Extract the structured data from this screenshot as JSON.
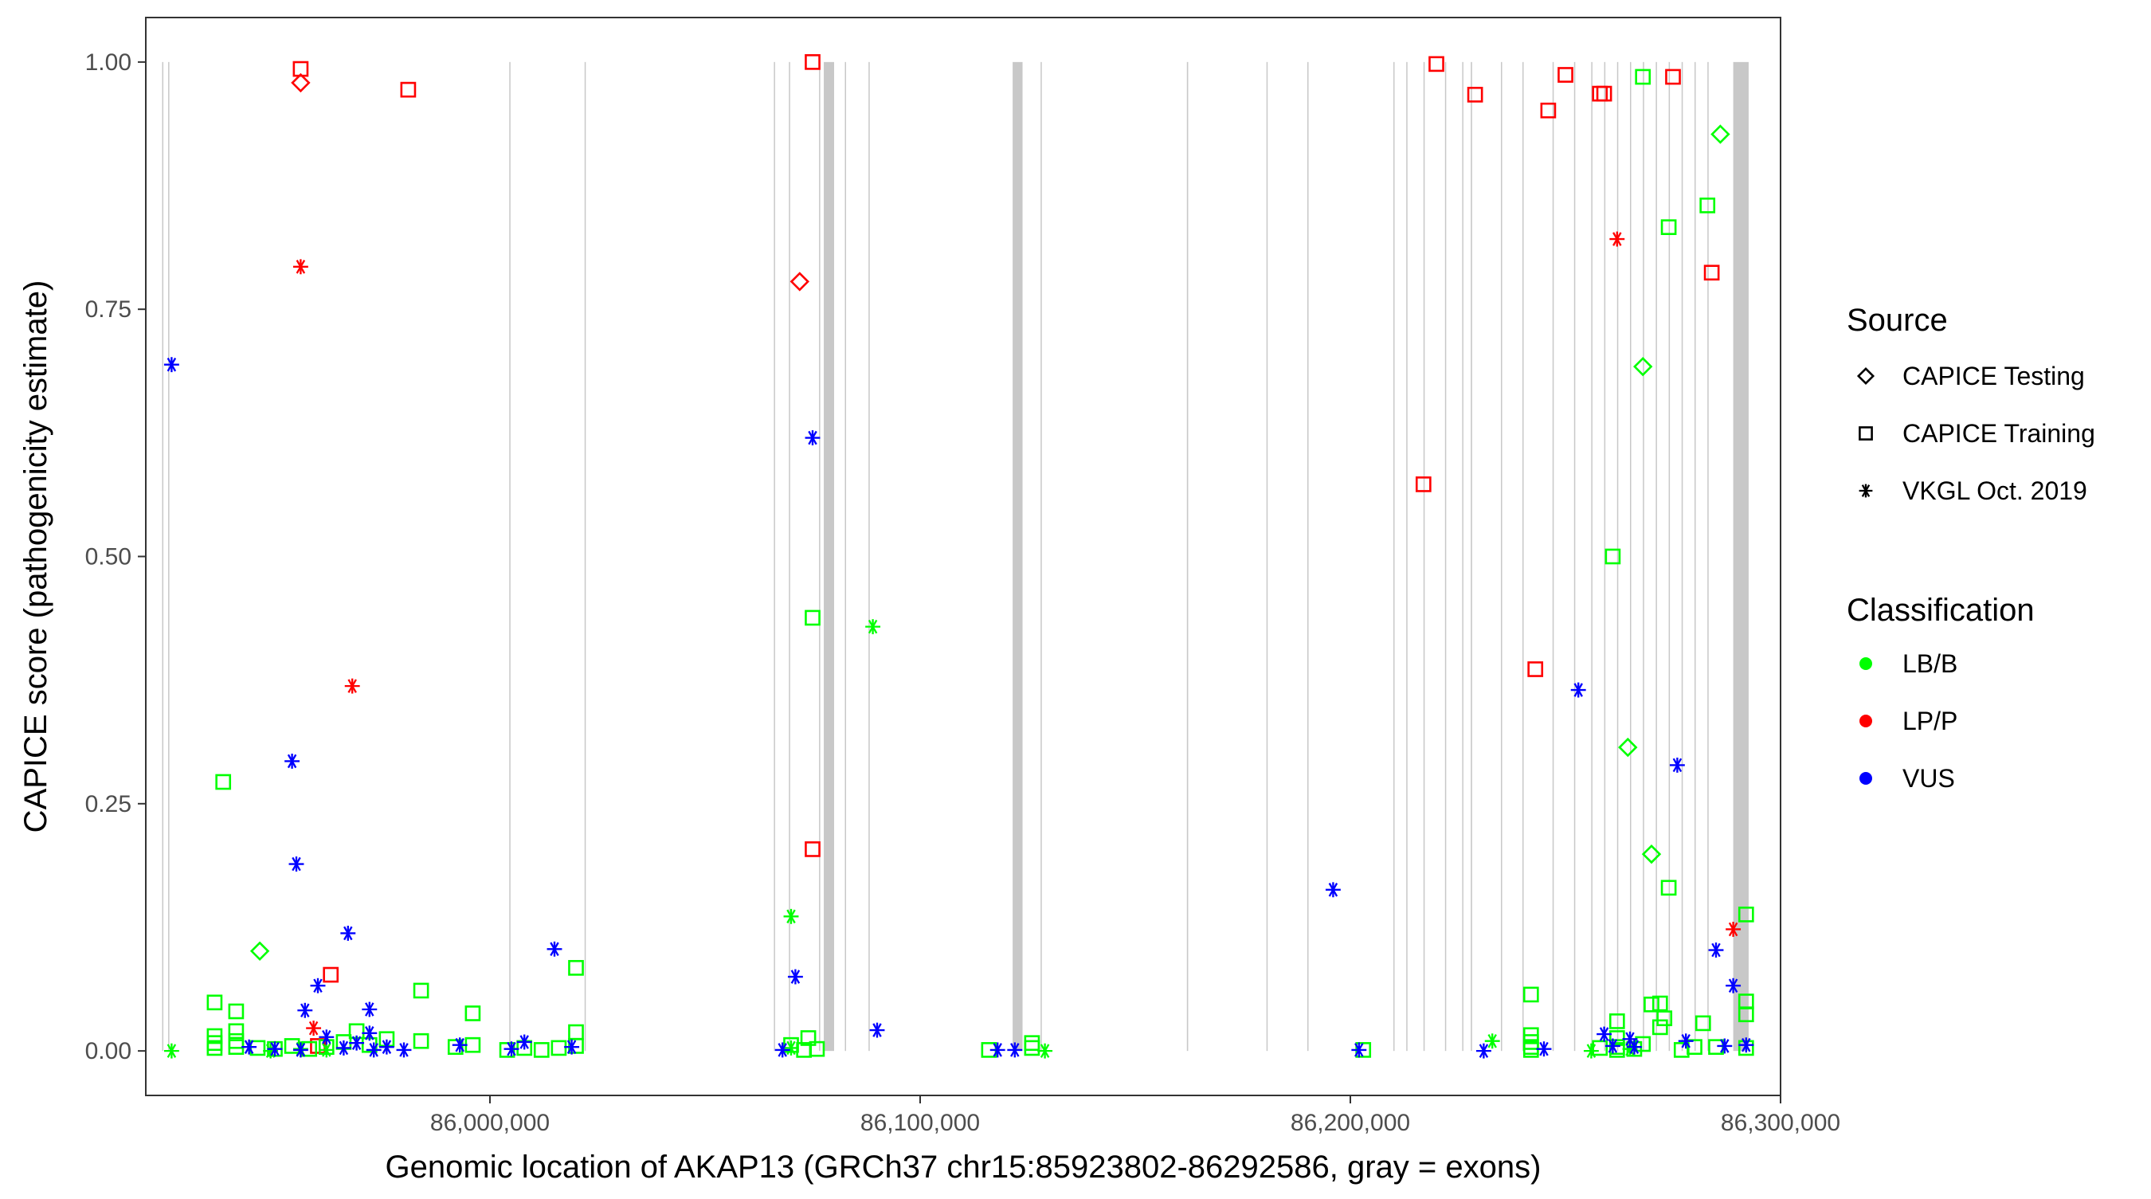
{
  "chart_data": {
    "type": "scatter",
    "title": "",
    "xlabel": "Genomic location of AKAP13 (GRCh37 chr15:85923802-86292586, gray = exons)",
    "ylabel": "CAPICE score (pathogenicity estimate)",
    "xlim": [
      85920000,
      86300000
    ],
    "ylim": [
      -0.045,
      1.045
    ],
    "x_ticks": [
      {
        "value": 86000000,
        "label": "86,000,000"
      },
      {
        "value": 86100000,
        "label": "86,100,000"
      },
      {
        "value": 86200000,
        "label": "86,200,000"
      },
      {
        "value": 86300000,
        "label": "86,300,000"
      }
    ],
    "y_ticks": [
      {
        "value": 0.0,
        "label": "0.00"
      },
      {
        "value": 0.25,
        "label": "0.25"
      },
      {
        "value": 0.5,
        "label": "0.50"
      },
      {
        "value": 0.75,
        "label": "0.75"
      },
      {
        "value": 1.0,
        "label": "1.00"
      }
    ],
    "grid": false,
    "exons": [
      [
        85923802,
        85923950
      ],
      [
        85925200,
        85925350
      ],
      [
        86004500,
        86004700
      ],
      [
        86022000,
        86022200
      ],
      [
        86066000,
        86066200
      ],
      [
        86069500,
        86069700
      ],
      [
        86076500,
        86076700
      ],
      [
        86077600,
        86080000
      ],
      [
        86082500,
        86082700
      ],
      [
        86088000,
        86088200
      ],
      [
        86121500,
        86123800
      ],
      [
        86128000,
        86128200
      ],
      [
        86162000,
        86162300
      ],
      [
        86180500,
        86180700
      ],
      [
        86190000,
        86190200
      ],
      [
        86210000,
        86210200
      ],
      [
        86213000,
        86213200
      ],
      [
        86217000,
        86217200
      ],
      [
        86222000,
        86222200
      ],
      [
        86226000,
        86226200
      ],
      [
        86228000,
        86228300
      ],
      [
        86235000,
        86235200
      ],
      [
        86240000,
        86240200
      ],
      [
        86247000,
        86247200
      ],
      [
        86252000,
        86252200
      ],
      [
        86256000,
        86256200
      ],
      [
        86259000,
        86259200
      ],
      [
        86262000,
        86262200
      ],
      [
        86265000,
        86265200
      ],
      [
        86268000,
        86268200
      ],
      [
        86271000,
        86271200
      ],
      [
        86274000,
        86274200
      ],
      [
        86277000,
        86277200
      ],
      [
        86280000,
        86280200
      ],
      [
        86283000,
        86283200
      ],
      [
        86289000,
        86292586
      ]
    ],
    "colors": {
      "LB/B": "#00ff00",
      "LP/P": "#ff0000",
      "VUS": "#0000ff",
      "exon": "#bebebe"
    },
    "series": [
      {
        "source": "CAPICE Testing",
        "classification": "LB/B",
        "points": [
          [
            85946500,
            0.101
          ],
          [
            86264500,
            0.307
          ],
          [
            86268000,
            0.692
          ],
          [
            86270000,
            0.199
          ],
          [
            86286000,
            0.927
          ]
        ]
      },
      {
        "source": "CAPICE Testing",
        "classification": "LP/P",
        "points": [
          [
            85956000,
            0.979
          ],
          [
            86072000,
            0.778
          ]
        ]
      },
      {
        "source": "CAPICE Training",
        "classification": "LP/P",
        "points": [
          [
            85956000,
            0.993
          ],
          [
            85981000,
            0.972
          ],
          [
            85963000,
            0.077
          ],
          [
            85960000,
            0.005
          ],
          [
            86075000,
            1.0
          ],
          [
            86075000,
            0.204
          ],
          [
            86220000,
            0.998
          ],
          [
            86229000,
            0.967
          ],
          [
            86217000,
            0.573
          ],
          [
            86246000,
            0.951
          ],
          [
            86250000,
            0.987
          ],
          [
            86258000,
            0.968
          ],
          [
            86259000,
            0.968
          ],
          [
            86243000,
            0.386
          ],
          [
            86275000,
            0.985
          ],
          [
            86284000,
            0.787
          ]
        ]
      },
      {
        "source": "CAPICE Training",
        "classification": "LB/B",
        "points": [
          [
            85938000,
            0.272
          ],
          [
            85936000,
            0.049
          ],
          [
            85941000,
            0.04
          ],
          [
            85936000,
            0.015
          ],
          [
            85936000,
            0.008
          ],
          [
            85936000,
            0.003
          ],
          [
            85941000,
            0.02
          ],
          [
            85941000,
            0.01
          ],
          [
            85941000,
            0.004
          ],
          [
            85946000,
            0.003
          ],
          [
            85950000,
            0.002
          ],
          [
            85954000,
            0.005
          ],
          [
            85958000,
            0.002
          ],
          [
            85962000,
            0.004
          ],
          [
            85966000,
            0.009
          ],
          [
            85969000,
            0.02
          ],
          [
            85972000,
            0.006
          ],
          [
            85976000,
            0.012
          ],
          [
            85984000,
            0.061
          ],
          [
            85984000,
            0.01
          ],
          [
            85992000,
            0.004
          ],
          [
            85996000,
            0.038
          ],
          [
            85996000,
            0.006
          ],
          [
            86004000,
            0.001
          ],
          [
            86008000,
            0.003
          ],
          [
            86012000,
            0.001
          ],
          [
            86016000,
            0.003
          ],
          [
            86020000,
            0.084
          ],
          [
            86020000,
            0.019
          ],
          [
            86020000,
            0.005
          ],
          [
            86074000,
            0.013
          ],
          [
            86075000,
            0.438
          ],
          [
            86070000,
            0.006
          ],
          [
            86073000,
            0.001
          ],
          [
            86076000,
            0.002
          ],
          [
            86116000,
            0.001
          ],
          [
            86126000,
            0.008
          ],
          [
            86126000,
            0.003
          ],
          [
            86203000,
            0.001
          ],
          [
            86242000,
            0.057
          ],
          [
            86242000,
            0.016
          ],
          [
            86242000,
            0.009
          ],
          [
            86242000,
            0.004
          ],
          [
            86242000,
            0.001
          ],
          [
            86261000,
            0.5
          ],
          [
            86262000,
            0.03
          ],
          [
            86262000,
            0.013
          ],
          [
            86262000,
            0.004
          ],
          [
            86262000,
            0.001
          ],
          [
            86268000,
            0.985
          ],
          [
            86270000,
            0.047
          ],
          [
            86272000,
            0.048
          ],
          [
            86273000,
            0.033
          ],
          [
            86274000,
            0.833
          ],
          [
            86274000,
            0.165
          ],
          [
            86272000,
            0.024
          ],
          [
            86268000,
            0.007
          ],
          [
            86280000,
            0.004
          ],
          [
            86282000,
            0.028
          ],
          [
            86283000,
            0.855
          ],
          [
            86285000,
            0.004
          ],
          [
            86292000,
            0.138
          ],
          [
            86292000,
            0.05
          ],
          [
            86292000,
            0.037
          ],
          [
            86292000,
            0.003
          ],
          [
            86277000,
            0.001
          ],
          [
            86266000,
            0.002
          ],
          [
            86258000,
            0.003
          ]
        ]
      },
      {
        "source": "VKGL Oct. 2019",
        "classification": "LP/P",
        "points": [
          [
            85956000,
            0.793
          ],
          [
            85968000,
            0.369
          ],
          [
            85959000,
            0.023
          ],
          [
            86262000,
            0.821
          ],
          [
            86289000,
            0.123
          ]
        ]
      },
      {
        "source": "VKGL Oct. 2019",
        "classification": "LB/B",
        "points": [
          [
            85926000,
            0.0
          ],
          [
            85949000,
            0.0
          ],
          [
            85956000,
            0.002
          ],
          [
            85962000,
            0.001
          ],
          [
            86070000,
            0.136
          ],
          [
            86070000,
            0.003
          ],
          [
            86089000,
            0.429
          ],
          [
            86129000,
            0.0
          ],
          [
            86233000,
            0.01
          ],
          [
            86256000,
            0.0
          ],
          [
            86265000,
            0.002
          ]
        ]
      },
      {
        "source": "VKGL Oct. 2019",
        "classification": "VUS",
        "points": [
          [
            85926000,
            0.694
          ],
          [
            85954000,
            0.293
          ],
          [
            85955000,
            0.189
          ],
          [
            85967000,
            0.119
          ],
          [
            85957000,
            0.041
          ],
          [
            85960000,
            0.066
          ],
          [
            85962000,
            0.014
          ],
          [
            85966000,
            0.003
          ],
          [
            85969000,
            0.008
          ],
          [
            85972000,
            0.042
          ],
          [
            85972000,
            0.018
          ],
          [
            85973000,
            0.001
          ],
          [
            85976000,
            0.004
          ],
          [
            85980000,
            0.001
          ],
          [
            85944000,
            0.004
          ],
          [
            85950000,
            0.002
          ],
          [
            85956000,
            0.001
          ],
          [
            85993000,
            0.006
          ],
          [
            86005000,
            0.002
          ],
          [
            86008000,
            0.009
          ],
          [
            86015000,
            0.103
          ],
          [
            86019000,
            0.004
          ],
          [
            86068000,
            0.001
          ],
          [
            86071000,
            0.075
          ],
          [
            86075000,
            0.62
          ],
          [
            86090000,
            0.021
          ],
          [
            86118000,
            0.001
          ],
          [
            86122000,
            0.001
          ],
          [
            86196000,
            0.163
          ],
          [
            86202000,
            0.001
          ],
          [
            86231000,
            0.0
          ],
          [
            86245000,
            0.002
          ],
          [
            86253000,
            0.365
          ],
          [
            86259000,
            0.017
          ],
          [
            86261000,
            0.005
          ],
          [
            86265000,
            0.012
          ],
          [
            86266000,
            0.004
          ],
          [
            86276000,
            0.289
          ],
          [
            86278000,
            0.01
          ],
          [
            86285000,
            0.102
          ],
          [
            86289000,
            0.066
          ],
          [
            86287000,
            0.005
          ],
          [
            86292000,
            0.006
          ]
        ]
      }
    ],
    "legend": {
      "placement": "right",
      "source_title": "Source",
      "source_items": [
        {
          "label": "CAPICE Testing",
          "shape": "diamond"
        },
        {
          "label": "CAPICE Training",
          "shape": "square"
        },
        {
          "label": "VKGL Oct. 2019",
          "shape": "asterisk"
        }
      ],
      "class_title": "Classification",
      "class_items": [
        {
          "label": "LB/B",
          "color": "#00ff00"
        },
        {
          "label": "LP/P",
          "color": "#ff0000"
        },
        {
          "label": "VUS",
          "color": "#0000ff"
        }
      ]
    }
  }
}
